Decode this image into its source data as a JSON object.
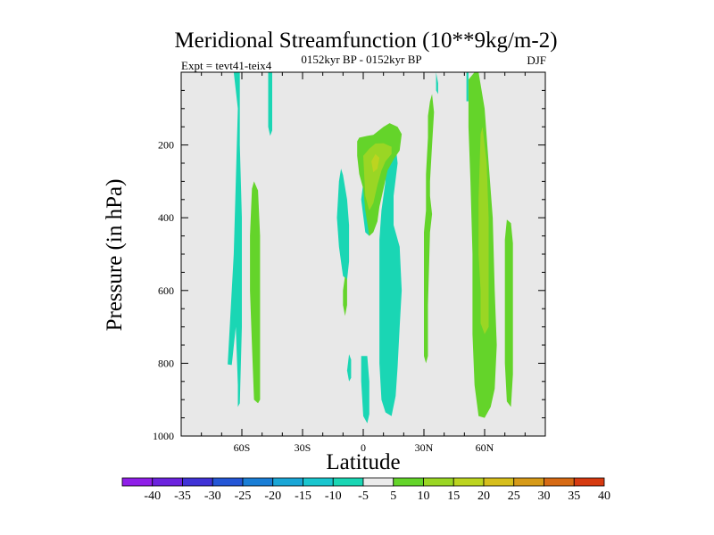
{
  "chart_data": {
    "type": "heatmap",
    "title": "Meridional Streamfunction (10**9kg/m-2)",
    "experiment": "Expt = tevt41-teix4",
    "period": "0152kyr BP - 0152kyr BP",
    "season": "DJF",
    "xlabel": "Latitude",
    "ylabel": "Pressure (in hPa)",
    "xlim": [
      -90,
      90
    ],
    "ylim": [
      0,
      1000
    ],
    "x_ticks": [
      {
        "value": -60,
        "label": "60S"
      },
      {
        "value": -30,
        "label": "30S"
      },
      {
        "value": 0,
        "label": "0"
      },
      {
        "value": 30,
        "label": "30N"
      },
      {
        "value": 60,
        "label": "60N"
      }
    ],
    "y_ticks": [
      {
        "value": 200,
        "label": "200"
      },
      {
        "value": 400,
        "label": "400"
      },
      {
        "value": 600,
        "label": "600"
      },
      {
        "value": 800,
        "label": "800"
      },
      {
        "value": 1000,
        "label": "1000"
      }
    ],
    "colorbar": {
      "labels": [
        "-40",
        "-35",
        "-30",
        "-25",
        "-20",
        "-15",
        "-10",
        "-5",
        "5",
        "10",
        "15",
        "20",
        "25",
        "30",
        "35",
        "40"
      ],
      "colors": [
        "#8f1fe8",
        "#6c23de",
        "#4032d6",
        "#2456d6",
        "#1a7ed6",
        "#1aa6d6",
        "#1ac6cf",
        "#1ad6b4",
        "#ebebeb",
        "#64d42a",
        "#9ad624",
        "#bcd420",
        "#d6be1c",
        "#d69a18",
        "#d66a14",
        "#d63a10"
      ]
    },
    "background_color": "#e8e8e8",
    "regions": [
      {
        "level": "-5",
        "color": "#1ad6b4",
        "points": [
          [
            -64,
            0
          ],
          [
            -62,
            100
          ],
          [
            -63,
            300
          ],
          [
            -64,
            500
          ],
          [
            -66,
            700
          ],
          [
            -67,
            803
          ],
          [
            -65,
            805
          ],
          [
            -63,
            700
          ],
          [
            -62,
            860
          ],
          [
            -62,
            920
          ],
          [
            -61,
            910
          ],
          [
            -60,
            700
          ],
          [
            -60,
            400
          ],
          [
            -61,
            200
          ],
          [
            -61,
            0
          ]
        ]
      },
      {
        "level": "-5",
        "color": "#1ad6b4",
        "points": [
          [
            -47,
            0
          ],
          [
            -47,
            60
          ],
          [
            -47,
            150
          ],
          [
            -46,
            175
          ],
          [
            -45,
            160
          ],
          [
            -45,
            60
          ],
          [
            -45,
            0
          ]
        ]
      },
      {
        "level": "-5",
        "color": "#1ad6b4",
        "points": [
          [
            -12,
            300
          ],
          [
            -11,
            265
          ],
          [
            -10,
            282
          ],
          [
            -8,
            350
          ],
          [
            -7,
            420
          ],
          [
            -7,
            520
          ],
          [
            -8,
            570
          ],
          [
            -10,
            560
          ],
          [
            -12,
            480
          ],
          [
            -13,
            400
          ]
        ]
      },
      {
        "level": "-5",
        "color": "#1ad6b4",
        "points": [
          [
            -7,
            775
          ],
          [
            -6,
            790
          ],
          [
            -6,
            840
          ],
          [
            -7,
            850
          ],
          [
            -8,
            820
          ]
        ]
      },
      {
        "level": "-5",
        "color": "#1ad6b4",
        "points": [
          [
            -1,
            780
          ],
          [
            -1,
            850
          ],
          [
            0,
            945
          ],
          [
            2,
            965
          ],
          [
            3,
            940
          ],
          [
            3,
            850
          ],
          [
            2,
            780
          ]
        ]
      },
      {
        "level": "-5",
        "color": "#1ad6b4",
        "points": [
          [
            12,
            220
          ],
          [
            16,
            200
          ],
          [
            17,
            250
          ],
          [
            15,
            340
          ],
          [
            15,
            420
          ],
          [
            18,
            480
          ],
          [
            19,
            600
          ],
          [
            18,
            700
          ],
          [
            17,
            810
          ],
          [
            16,
            890
          ],
          [
            14,
            945
          ],
          [
            11,
            935
          ],
          [
            9,
            900
          ],
          [
            8,
            800
          ],
          [
            8,
            700
          ],
          [
            8,
            560
          ],
          [
            8,
            460
          ],
          [
            9,
            380
          ],
          [
            11,
            300
          ],
          [
            11,
            250
          ]
        ]
      },
      {
        "level": "-5",
        "color": "#1ad6b4",
        "points": [
          [
            0,
            305
          ],
          [
            2,
            310
          ],
          [
            3,
            395
          ],
          [
            4,
            430
          ],
          [
            3,
            450
          ],
          [
            1,
            440
          ],
          [
            -1,
            350
          ]
        ]
      },
      {
        "level": "-5",
        "color": "#1ad6b4",
        "points": [
          [
            36,
            0
          ],
          [
            37,
            30
          ],
          [
            37,
            60
          ],
          [
            36,
            50
          ]
        ]
      },
      {
        "level": "-5",
        "color": "#1ad6b4",
        "points": [
          [
            51,
            0
          ],
          [
            52,
            0
          ],
          [
            52,
            80
          ],
          [
            51,
            80
          ]
        ]
      },
      {
        "level": "5",
        "color": "#64d42a",
        "points": [
          [
            -55,
            320
          ],
          [
            -54,
            300
          ],
          [
            -52,
            325
          ],
          [
            -51,
            450
          ],
          [
            -51,
            600
          ],
          [
            -51,
            750
          ],
          [
            -51,
            900
          ],
          [
            -52,
            910
          ],
          [
            -54,
            900
          ],
          [
            -55,
            750
          ],
          [
            -56,
            600
          ],
          [
            -56,
            450
          ]
        ]
      },
      {
        "level": "5",
        "color": "#64d42a",
        "points": [
          [
            -3,
            190
          ],
          [
            -2,
            180
          ],
          [
            2,
            175
          ],
          [
            5,
            172
          ],
          [
            10,
            150
          ],
          [
            13,
            140
          ],
          [
            17,
            150
          ],
          [
            19,
            170
          ],
          [
            18,
            215
          ],
          [
            15,
            240
          ],
          [
            12,
            270
          ],
          [
            10,
            320
          ],
          [
            8,
            370
          ],
          [
            7,
            410
          ],
          [
            5,
            440
          ],
          [
            3,
            450
          ],
          [
            1,
            380
          ],
          [
            0,
            320
          ],
          [
            -2,
            280
          ],
          [
            -3,
            230
          ]
        ]
      },
      {
        "level": "5",
        "color": "#64d42a",
        "points": [
          [
            -9,
            560
          ],
          [
            -8,
            570
          ],
          [
            -8,
            640
          ],
          [
            -9,
            670
          ],
          [
            -10,
            640
          ],
          [
            -10,
            600
          ]
        ]
      },
      {
        "level": "5",
        "color": "#64d42a",
        "points": [
          [
            33,
            80
          ],
          [
            34,
            60
          ],
          [
            35,
            110
          ],
          [
            34,
            200
          ],
          [
            33,
            300
          ],
          [
            33,
            340
          ],
          [
            34,
            390
          ],
          [
            33,
            440
          ],
          [
            32,
            640
          ],
          [
            32,
            780
          ],
          [
            31,
            800
          ],
          [
            30,
            780
          ],
          [
            30,
            640
          ],
          [
            30,
            440
          ],
          [
            31,
            380
          ],
          [
            31,
            280
          ],
          [
            32,
            180
          ],
          [
            32,
            120
          ]
        ]
      },
      {
        "level": "5",
        "color": "#64d42a",
        "points": [
          [
            52,
            20
          ],
          [
            55,
            0
          ],
          [
            57,
            0
          ],
          [
            60,
            100
          ],
          [
            62,
            250
          ],
          [
            64,
            400
          ],
          [
            65,
            600
          ],
          [
            66,
            750
          ],
          [
            65,
            870
          ],
          [
            63,
            920
          ],
          [
            60,
            950
          ],
          [
            57,
            945
          ],
          [
            55,
            860
          ],
          [
            54,
            720
          ],
          [
            54,
            500
          ],
          [
            53,
            300
          ],
          [
            52,
            150
          ]
        ]
      },
      {
        "level": "5",
        "color": "#64d42a",
        "points": [
          [
            71,
            405
          ],
          [
            73,
            415
          ],
          [
            74,
            470
          ],
          [
            74,
            640
          ],
          [
            74,
            830
          ],
          [
            73,
            920
          ],
          [
            71,
            905
          ],
          [
            70,
            800
          ],
          [
            70,
            640
          ],
          [
            70,
            460
          ]
        ]
      },
      {
        "level": "10",
        "color": "#9ad624",
        "points": [
          [
            0,
            230
          ],
          [
            3,
            210
          ],
          [
            6,
            196
          ],
          [
            10,
            195
          ],
          [
            14,
            205
          ],
          [
            14,
            225
          ],
          [
            11,
            245
          ],
          [
            9,
            270
          ],
          [
            7,
            310
          ],
          [
            5,
            360
          ],
          [
            3,
            380
          ],
          [
            1,
            340
          ]
        ]
      },
      {
        "level": "10",
        "color": "#9ad624",
        "points": [
          [
            58,
            170
          ],
          [
            59,
            150
          ],
          [
            61,
            250
          ],
          [
            62,
            400
          ],
          [
            62,
            600
          ],
          [
            62,
            700
          ],
          [
            60,
            720
          ],
          [
            58,
            690
          ],
          [
            58,
            600
          ],
          [
            57,
            500
          ],
          [
            57,
            350
          ]
        ]
      },
      {
        "level": "15",
        "color": "#bcd420",
        "points": [
          [
            4,
            245
          ],
          [
            6,
            225
          ],
          [
            8,
            235
          ],
          [
            7,
            265
          ],
          [
            5,
            275
          ]
        ]
      }
    ]
  }
}
